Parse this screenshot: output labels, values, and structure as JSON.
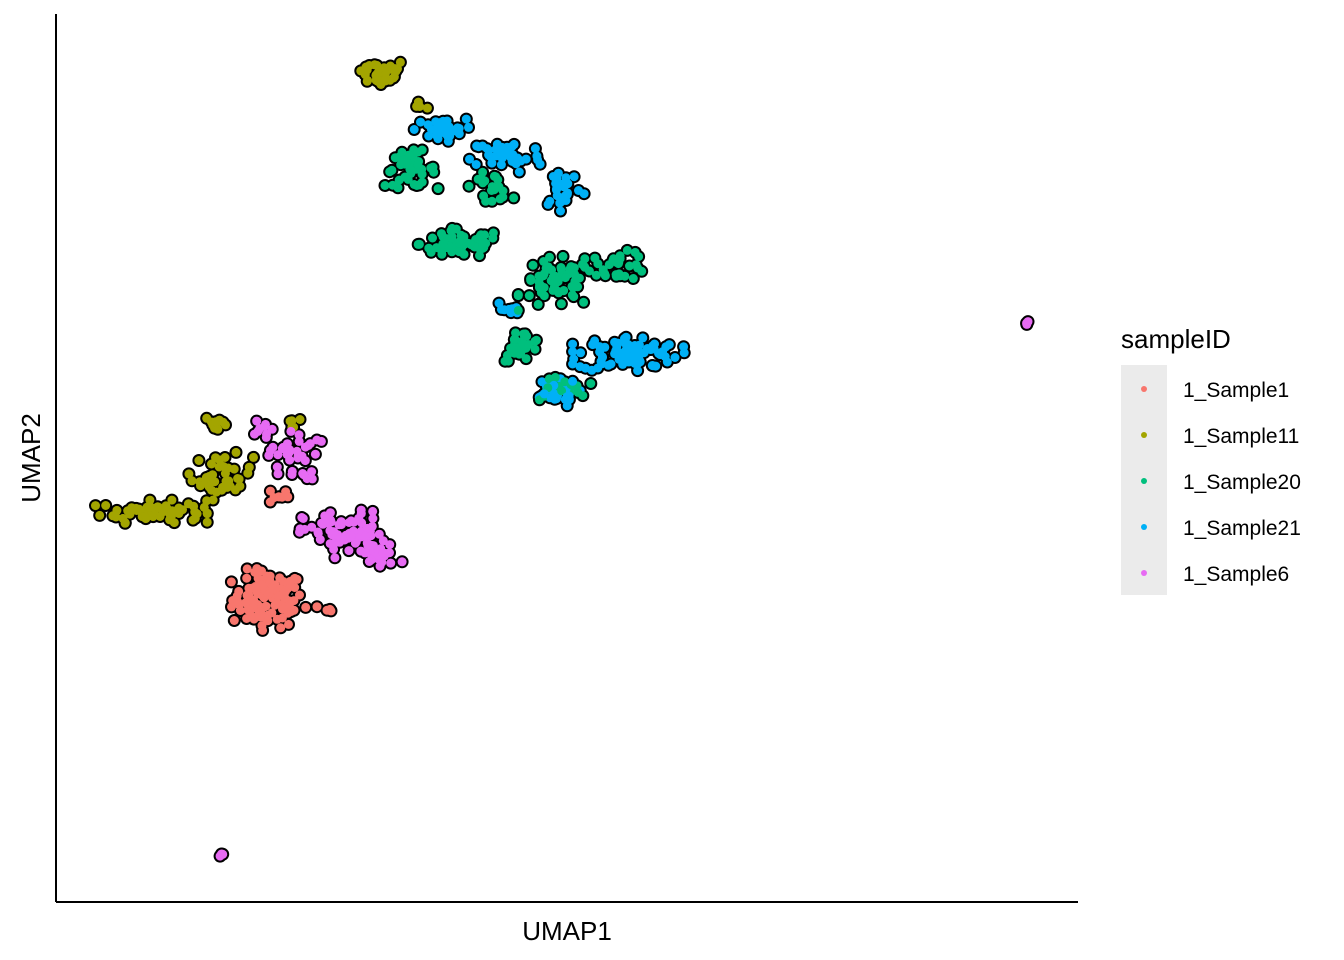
{
  "chart_data": {
    "type": "scatter",
    "title": "",
    "xlabel": "UMAP1",
    "ylabel": "UMAP2",
    "xlim": [
      0,
      100
    ],
    "ylim": [
      0,
      100
    ],
    "axis_ticks": false,
    "grid": false,
    "legend": {
      "title": "sampleID",
      "position": "right"
    },
    "point_outline": "#000000",
    "series": [
      {
        "name": "1_Sample1",
        "color": "#F8766D",
        "clusters": [
          {
            "center": [
              20.5,
              34.0
            ],
            "spread": [
              3.5,
              3.2
            ],
            "n": 110
          },
          {
            "center": [
              21.5,
              45.8
            ],
            "spread": [
              1.0,
              1.0
            ],
            "n": 8
          },
          {
            "center": [
              26.2,
              32.8
            ],
            "spread": [
              0.8,
              0.7
            ],
            "n": 5
          }
        ]
      },
      {
        "name": "1_Sample11",
        "color": "#A3A500",
        "clusters": [
          {
            "center": [
              31.5,
              94.0
            ],
            "spread": [
              2.7,
              1.6
            ],
            "n": 35
          },
          {
            "center": [
              36.0,
              90.5
            ],
            "spread": [
              0.8,
              0.8
            ],
            "n": 4
          },
          {
            "center": [
              9.0,
              44.0
            ],
            "spread": [
              5.0,
              1.2
            ],
            "n": 70
          },
          {
            "center": [
              16.0,
              48.0
            ],
            "spread": [
              3.0,
              2.5
            ],
            "n": 40
          },
          {
            "center": [
              15.5,
              54.0
            ],
            "spread": [
              1.2,
              1.0
            ],
            "n": 10
          },
          {
            "center": [
              23.0,
              54.5
            ],
            "spread": [
              0.8,
              0.8
            ],
            "n": 5
          }
        ]
      },
      {
        "name": "1_Sample20",
        "color": "#00BF7D",
        "clusters": [
          {
            "center": [
              34.5,
              83.0
            ],
            "spread": [
              2.5,
              2.0
            ],
            "n": 45
          },
          {
            "center": [
              39.5,
              74.5
            ],
            "spread": [
              4.0,
              1.6
            ],
            "n": 70
          },
          {
            "center": [
              49.0,
              70.0
            ],
            "spread": [
              3.5,
              2.8
            ],
            "n": 60
          },
          {
            "center": [
              55.0,
              72.0
            ],
            "spread": [
              3.0,
              1.6
            ],
            "n": 30
          },
          {
            "center": [
              45.5,
              63.0
            ],
            "spread": [
              2.0,
              1.8
            ],
            "n": 25
          },
          {
            "center": [
              42.5,
              81.0
            ],
            "spread": [
              2.0,
              1.5
            ],
            "n": 20
          },
          {
            "center": [
              49.0,
              58.0
            ],
            "spread": [
              3.0,
              1.5
            ],
            "n": 20
          }
        ]
      },
      {
        "name": "1_Sample21",
        "color": "#00B0F6",
        "clusters": [
          {
            "center": [
              37.5,
              87.5
            ],
            "spread": [
              2.5,
              1.2
            ],
            "n": 35
          },
          {
            "center": [
              44.0,
              84.5
            ],
            "spread": [
              3.5,
              2.0
            ],
            "n": 45
          },
          {
            "center": [
              49.5,
              81.0
            ],
            "spread": [
              2.0,
              2.5
            ],
            "n": 25
          },
          {
            "center": [
              56.0,
              62.0
            ],
            "spread": [
              5.0,
              2.0
            ],
            "n": 80
          },
          {
            "center": [
              48.5,
              57.5
            ],
            "spread": [
              2.5,
              1.5
            ],
            "n": 30
          },
          {
            "center": [
              44.0,
              67.0
            ],
            "spread": [
              1.2,
              1.0
            ],
            "n": 8
          }
        ]
      },
      {
        "name": "1_Sample6",
        "color": "#E76BF3",
        "clusters": [
          {
            "center": [
              23.0,
              50.5
            ],
            "spread": [
              2.5,
              3.0
            ],
            "n": 35
          },
          {
            "center": [
              28.0,
              41.5
            ],
            "spread": [
              4.0,
              2.5
            ],
            "n": 70
          },
          {
            "center": [
              31.5,
              39.0
            ],
            "spread": [
              2.0,
              1.5
            ],
            "n": 25
          },
          {
            "center": [
              19.8,
              53.5
            ],
            "spread": [
              0.8,
              1.5
            ],
            "n": 8
          },
          {
            "center": [
              16.1,
              4.9
            ],
            "spread": [
              0.3,
              0.2
            ],
            "n": 3
          },
          {
            "center": [
              95.2,
              65.5
            ],
            "spread": [
              0.2,
              0.15
            ],
            "n": 3
          }
        ]
      }
    ]
  }
}
